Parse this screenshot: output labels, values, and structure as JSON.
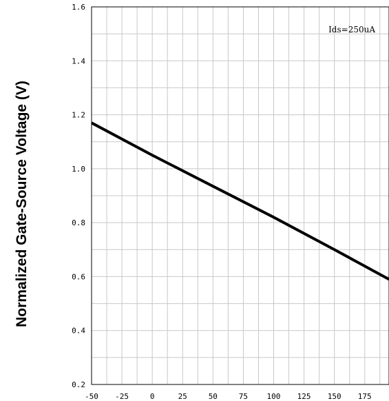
{
  "chart_data": {
    "type": "line",
    "title": "",
    "xlabel": "",
    "ylabel": "Normalized Gate-Source Voltage (V)",
    "annotation": "Ids=250uA",
    "xlim": [
      -50,
      195
    ],
    "ylim": [
      0.2,
      1.6
    ],
    "x_ticks": [
      -50,
      -25,
      0,
      25,
      50,
      75,
      100,
      125,
      150,
      175
    ],
    "y_ticks": [
      "0.2",
      "0.4",
      "0.6",
      "0.8",
      "1.0",
      "1.2",
      "1.4",
      "1.6"
    ],
    "x_minor_step": 12.5,
    "y_minor_step": 0.1,
    "grid": true,
    "line_color": "#000000",
    "grid_color": "#c8c8c8",
    "series": [
      {
        "x": [
          -50,
          0,
          50,
          100,
          150,
          195
        ],
        "y": [
          1.17,
          1.05,
          0.935,
          0.82,
          0.7,
          0.59
        ]
      }
    ]
  }
}
